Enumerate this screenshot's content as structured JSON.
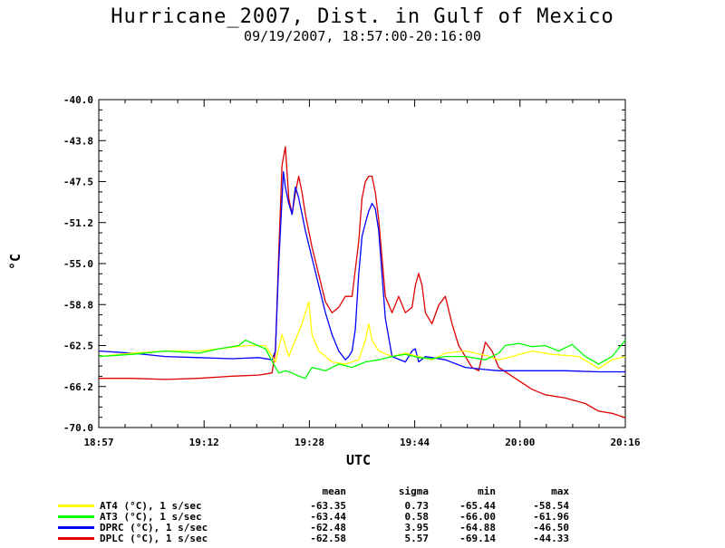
{
  "title": "Hurricane_2007, Dist. in Gulf of Mexico",
  "subtitle": "09/19/2007, 18:57:00-20:16:00",
  "chart_data": {
    "type": "line",
    "title": "Hurricane_2007, Dist. in Gulf of Mexico",
    "subtitle": "09/19/2007, 18:57:00-20:16:00",
    "xlabel": "UTC",
    "ylabel": "°C",
    "ylim": [
      -70.0,
      -40.0
    ],
    "xlim_minutes": [
      0,
      79
    ],
    "xticks": [
      "18:57",
      "19:12",
      "19:28",
      "19:44",
      "20:00",
      "20:16"
    ],
    "yticks": [
      "-40.0",
      "-43.8",
      "-47.5",
      "-51.2",
      "-55.0",
      "-58.8",
      "-62.5",
      "-66.2",
      "-70.0"
    ],
    "grid": false,
    "series": [
      {
        "name": "AT4 (°C), 1 s/sec",
        "color": "#ffff00",
        "x": [
          0,
          5,
          10,
          15,
          18,
          22,
          25,
          26.5,
          27.5,
          28.5,
          29.5,
          30.5,
          31.5,
          32,
          33,
          35,
          37,
          39,
          40,
          40.5,
          41,
          42,
          44,
          46,
          48,
          50,
          52,
          55,
          58,
          60,
          62,
          65,
          68,
          72,
          75,
          77,
          79
        ],
        "y": [
          -63.5,
          -63.2,
          -63.0,
          -63.0,
          -62.8,
          -62.5,
          -62.5,
          -64.0,
          -61.5,
          -63.5,
          -62.0,
          -60.5,
          -58.5,
          -61.5,
          -63.0,
          -64.0,
          -64.2,
          -63.8,
          -62.0,
          -60.5,
          -62.0,
          -63.0,
          -63.5,
          -63.2,
          -63.5,
          -63.8,
          -63.2,
          -63.0,
          -63.4,
          -63.8,
          -63.5,
          -63.0,
          -63.3,
          -63.5,
          -64.6,
          -63.8,
          -63.5
        ]
      },
      {
        "name": "AT3 (°C), 1 s/sec",
        "color": "#00ff00",
        "x": [
          0,
          5,
          10,
          15,
          18,
          21,
          22,
          25,
          26.5,
          27,
          28,
          29,
          30,
          31,
          32,
          34,
          36,
          38,
          40,
          42,
          44,
          46,
          48,
          50,
          52,
          55,
          58,
          60,
          61,
          63,
          65,
          67,
          69,
          71,
          73,
          75,
          77,
          79
        ],
        "y": [
          -63.5,
          -63.3,
          -63.0,
          -63.2,
          -62.8,
          -62.5,
          -62.0,
          -62.8,
          -64.5,
          -65.0,
          -64.8,
          -65.0,
          -65.3,
          -65.5,
          -64.5,
          -64.8,
          -64.2,
          -64.5,
          -64.0,
          -63.8,
          -63.5,
          -63.3,
          -63.6,
          -63.7,
          -63.5,
          -63.5,
          -63.8,
          -63.2,
          -62.5,
          -62.3,
          -62.6,
          -62.5,
          -63.0,
          -62.4,
          -63.5,
          -64.2,
          -63.5,
          -62.0
        ]
      },
      {
        "name": "DPRC (°C), 1 s/sec",
        "color": "#0000ff",
        "x": [
          0,
          5,
          10,
          15,
          20,
          24,
          26,
          26.5,
          27,
          27.7,
          28,
          28.5,
          29,
          29.5,
          30,
          31,
          32,
          33,
          34,
          35,
          36,
          37,
          37.5,
          38,
          38.5,
          39,
          39.5,
          40,
          40.5,
          41,
          41.5,
          42,
          43,
          44,
          46,
          47,
          47.5,
          48,
          49,
          50,
          52,
          55,
          58,
          60,
          65,
          70,
          75,
          79
        ],
        "y": [
          -63.0,
          -63.2,
          -63.5,
          -63.6,
          -63.7,
          -63.6,
          -63.8,
          -63.0,
          -55.0,
          -46.6,
          -48.0,
          -49.5,
          -50.5,
          -48.0,
          -49.0,
          -52.0,
          -54.5,
          -57.0,
          -59.5,
          -61.5,
          -63.0,
          -63.8,
          -63.5,
          -63.0,
          -61.0,
          -56.0,
          -52.5,
          -51.3,
          -50.2,
          -49.5,
          -50.0,
          -52.0,
          -60.0,
          -63.5,
          -64.0,
          -63.0,
          -62.8,
          -64.0,
          -63.5,
          -63.6,
          -63.8,
          -64.5,
          -64.7,
          -64.8,
          -64.8,
          -64.8,
          -64.9,
          -64.9
        ]
      },
      {
        "name": "DPLC (°C), 1 s/sec",
        "color": "#dd0000",
        "x": [
          0,
          5,
          10,
          15,
          20,
          24,
          26,
          26.5,
          27,
          27.5,
          28,
          28.5,
          29,
          29.5,
          30,
          30.5,
          31,
          32,
          33,
          34,
          35,
          36,
          37,
          38,
          39,
          39.5,
          40,
          40.5,
          41,
          41.5,
          42,
          43,
          44,
          45,
          46,
          47,
          47.5,
          48,
          48.5,
          49,
          50,
          51,
          52,
          53,
          54,
          55,
          56,
          57,
          58,
          59,
          60,
          62,
          65,
          67,
          70,
          73,
          75,
          77,
          79
        ],
        "y": [
          -65.5,
          -65.5,
          -65.6,
          -65.5,
          -65.3,
          -65.2,
          -65.0,
          -63.0,
          -54.0,
          -46.0,
          -44.3,
          -49.0,
          -50.5,
          -48.5,
          -47.0,
          -48.5,
          -50.5,
          -53.5,
          -56.0,
          -58.5,
          -59.5,
          -59.0,
          -58.0,
          -58.0,
          -53.0,
          -49.0,
          -47.5,
          -47.0,
          -47.0,
          -48.5,
          -51.0,
          -58.0,
          -59.5,
          -58.0,
          -59.5,
          -59.0,
          -57.0,
          -55.9,
          -57.0,
          -59.5,
          -60.5,
          -58.8,
          -58.0,
          -60.5,
          -62.5,
          -63.5,
          -64.5,
          -64.8,
          -62.2,
          -63.0,
          -64.5,
          -65.3,
          -66.5,
          -67.0,
          -67.3,
          -67.8,
          -68.5,
          -68.7,
          -69.1
        ]
      }
    ],
    "stats": {
      "headers": [
        "mean",
        "sigma",
        "min",
        "max"
      ],
      "rows": [
        {
          "name": "AT4 (°C), 1 s/sec",
          "mean": "-63.35",
          "sigma": "0.73",
          "min": "-65.44",
          "max": "-58.54"
        },
        {
          "name": "AT3 (°C), 1 s/sec",
          "mean": "-63.44",
          "sigma": "0.58",
          "min": "-66.00",
          "max": "-61.96"
        },
        {
          "name": "DPRC (°C), 1 s/sec",
          "mean": "-62.48",
          "sigma": "3.95",
          "min": "-64.88",
          "max": "-46.50"
        },
        {
          "name": "DPLC (°C), 1 s/sec",
          "mean": "-62.58",
          "sigma": "5.57",
          "min": "-69.14",
          "max": "-44.33"
        }
      ]
    }
  }
}
